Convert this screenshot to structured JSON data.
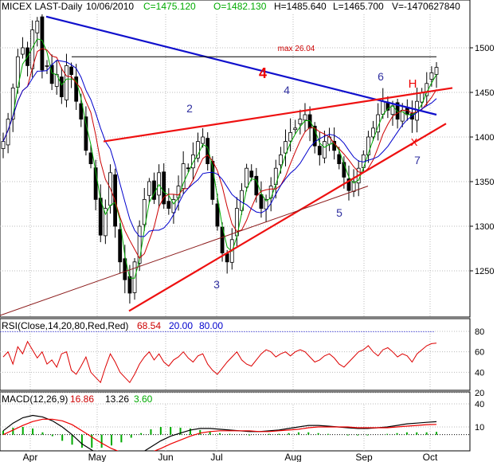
{
  "chart_data": [
    {
      "type": "candlestick",
      "header": {
        "symbol": "MICEX LAST-Daily",
        "date": "10/06/2010",
        "close": "C=1475.120",
        "open": "O=1482.130",
        "high": "H=1485.640",
        "low": "L=1465.700",
        "volume": "V=-1470627840"
      },
      "y_ticks": [
        "1500",
        "1450",
        "1400",
        "1350",
        "1300",
        "1250"
      ],
      "ylim": [
        1195,
        1545
      ],
      "x_ticks": [
        "Apr",
        "May",
        "Jun",
        "Jul",
        "Aug",
        "Sep",
        "Oct"
      ],
      "grid": true,
      "series": [
        {
          "name": "MICEX",
          "type": "candlestick"
        },
        {
          "name": "",
          "type": "moving-average",
          "color": "#00aa00"
        },
        {
          "name": "",
          "type": "moving-average",
          "color": "#cc0000"
        },
        {
          "name": "",
          "type": "moving-average",
          "color": "#0000cc"
        }
      ],
      "close_path": [
        1395,
        1420,
        1455,
        1490,
        1500,
        1480,
        1520,
        1530,
        1475,
        1480,
        1460,
        1470,
        1445,
        1480,
        1470,
        1440,
        1420,
        1385,
        1370,
        1330,
        1290,
        1320,
        1360,
        1300,
        1260,
        1240,
        1225,
        1260,
        1300,
        1330,
        1350,
        1330,
        1360,
        1325,
        1320,
        1330,
        1345,
        1370,
        1365,
        1380,
        1395,
        1400,
        1370,
        1330,
        1300,
        1270,
        1260,
        1285,
        1320,
        1340,
        1365,
        1355,
        1335,
        1320,
        1330,
        1345,
        1365,
        1380,
        1395,
        1405,
        1410,
        1420,
        1425,
        1410,
        1390,
        1380,
        1395,
        1400,
        1385,
        1370,
        1355,
        1340,
        1350,
        1365,
        1380,
        1400,
        1410,
        1425,
        1440,
        1430,
        1435,
        1420,
        1430,
        1425,
        1420,
        1440,
        1450,
        1460,
        1472,
        1478
      ],
      "annotations": [
        {
          "label": "max 26.04",
          "color": "#cc0000"
        },
        {
          "label": "4",
          "color": "#ee0000"
        },
        {
          "label": "2",
          "color": "#3030a0"
        },
        {
          "label": "4",
          "color": "#3030a0"
        },
        {
          "label": "6",
          "color": "#3030a0"
        },
        {
          "label": "H",
          "color": "#ee0000"
        },
        {
          "label": "X",
          "color": "#ee0000"
        },
        {
          "label": "7",
          "color": "#3030a0"
        },
        {
          "label": "5",
          "color": "#3030a0"
        },
        {
          "label": "3",
          "color": "#3030a0"
        }
      ]
    },
    {
      "type": "line",
      "header": {
        "name": "RSI(Close,14,20,80,Red,Red)",
        "value1": "68.54",
        "value2": "20.00",
        "value3": "80.00"
      },
      "y_ticks": [
        "80",
        "60",
        "40",
        "20"
      ],
      "ylim": [
        20,
        90
      ],
      "values": [
        55,
        60,
        48,
        65,
        58,
        70,
        62,
        54,
        60,
        48,
        52,
        45,
        58,
        60,
        42,
        38,
        46,
        55,
        40,
        35,
        30,
        45,
        58,
        50,
        40,
        35,
        30,
        38,
        48,
        55,
        60,
        52,
        58,
        50,
        46,
        52,
        55,
        60,
        54,
        50,
        56,
        58,
        48,
        42,
        38,
        44,
        50,
        55,
        60,
        52,
        48,
        46,
        52,
        58,
        62,
        60,
        55,
        58,
        60,
        56,
        60,
        62,
        60,
        55,
        50,
        52,
        56,
        58,
        54,
        48,
        45,
        50,
        55,
        60,
        62,
        66,
        60,
        56,
        62,
        64,
        60,
        55,
        58,
        56,
        50,
        58,
        62,
        66,
        68,
        68.54
      ]
    },
    {
      "type": "line",
      "header": {
        "name": "MACD(12,26,9)",
        "value1": "16.86",
        "value2": "13.26",
        "value3": "3.60"
      },
      "y_ticks": [
        "40",
        "10"
      ],
      "ylim": [
        -40,
        45
      ],
      "series": [
        {
          "name": "",
          "color": "#000000",
          "values": [
            5,
            15,
            22,
            25,
            23,
            18,
            10,
            0,
            -12,
            -20,
            -28,
            -32,
            -33,
            -30,
            -24,
            -16,
            -8,
            -2,
            2,
            6,
            8,
            8,
            7,
            6,
            5,
            4,
            4,
            5,
            6,
            8,
            10,
            12,
            12,
            11,
            10,
            9,
            8,
            8,
            9,
            10,
            12,
            14,
            15,
            16,
            16.86
          ]
        },
        {
          "name": "",
          "color": "#ee0000",
          "values": [
            0,
            6,
            12,
            17,
            20,
            20,
            18,
            13,
            5,
            -3,
            -11,
            -18,
            -23,
            -26,
            -26,
            -23,
            -18,
            -12,
            -7,
            -2,
            2,
            4,
            5,
            5,
            5,
            5,
            4,
            4,
            5,
            6,
            7,
            9,
            10,
            10,
            10,
            10,
            9,
            9,
            9,
            9,
            10,
            11,
            12,
            13,
            13.26
          ]
        },
        {
          "name": "",
          "color": "#00aa00",
          "type": "histogram"
        }
      ]
    }
  ]
}
